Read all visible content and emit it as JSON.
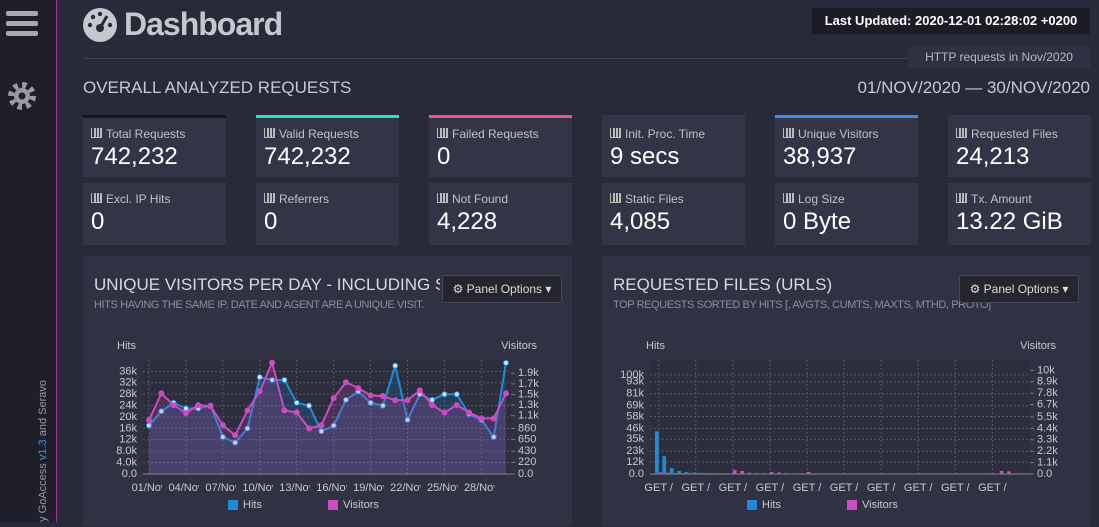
{
  "sidebar": {
    "credit_prefix": "by GoAccess ",
    "version": "v1.3",
    "credit_suffix": " and Seravo"
  },
  "header": {
    "title": "Dashboard",
    "last_updated": "Last Updated: 2020-12-01 02:28:02 +0200",
    "tab": "HTTP requests in Nov/2020"
  },
  "overall": {
    "title": "OVERALL ANALYZED REQUESTS",
    "date_range": "01/NOV/2020 — 30/NOV/2020"
  },
  "metrics": [
    {
      "label": "Total Requests",
      "value": "742,232"
    },
    {
      "label": "Valid Requests",
      "value": "742,232"
    },
    {
      "label": "Failed Requests",
      "value": "0"
    },
    {
      "label": "Init. Proc. Time",
      "value": "9 secs"
    },
    {
      "label": "Unique Visitors",
      "value": "38,937"
    },
    {
      "label": "Requested Files",
      "value": "24,213"
    },
    {
      "label": "Excl. IP Hits",
      "value": "0"
    },
    {
      "label": "Referrers",
      "value": "0"
    },
    {
      "label": "Not Found",
      "value": "4,228"
    },
    {
      "label": "Static Files",
      "value": "4,085"
    },
    {
      "label": "Log Size",
      "value": "0 Byte"
    },
    {
      "label": "Tx. Amount",
      "value": "13.22 GiB"
    }
  ],
  "ui": {
    "panel_options": "Panel Options"
  },
  "chart_data": [
    {
      "type": "line",
      "title": "UNIQUE VISITORS PER DAY - INCLUDING SPIDERS",
      "subtitle": "HITS HAVING THE SAME IP, DATE AND AGENT ARE A UNIQUE VISIT.",
      "y_label": "Hits",
      "y2_label": "Visitors",
      "grid": true,
      "categories": [
        "01/Nov",
        null,
        null,
        "04/Nov",
        null,
        null,
        "07/Nov",
        null,
        null,
        "10/Nov",
        null,
        null,
        "13/Nov",
        null,
        null,
        "16/Nov",
        null,
        null,
        "19/Nov",
        null,
        null,
        "22/Nov",
        null,
        null,
        "25/Nov",
        null,
        null,
        "28/Nov",
        null,
        null
      ],
      "ylim": [
        0,
        40000
      ],
      "yticks": [
        {
          "value": 0,
          "label": "0.0"
        },
        {
          "value": 4000,
          "label": "4.0k"
        },
        {
          "value": 8000,
          "label": "8.0k"
        },
        {
          "value": 12000,
          "label": "12k"
        },
        {
          "value": 16000,
          "label": "16k"
        },
        {
          "value": 20000,
          "label": "20k"
        },
        {
          "value": 24000,
          "label": "24k"
        },
        {
          "value": 28000,
          "label": "28k"
        },
        {
          "value": 32000,
          "label": "32k"
        },
        {
          "value": 36000,
          "label": "36k"
        }
      ],
      "y2lim": [
        0,
        2150
      ],
      "y2ticks": [
        {
          "value": 0,
          "label": "0.0"
        },
        220,
        430,
        650,
        860,
        {
          "value": 1100,
          "label": "1.1k"
        },
        {
          "value": 1300,
          "label": "1.3k"
        },
        {
          "value": 1500,
          "label": "1.5k"
        },
        {
          "value": 1700,
          "label": "1.7k"
        },
        {
          "value": 1900,
          "label": "1.9k"
        }
      ],
      "series": [
        {
          "name": "Hits",
          "color": "#1f8bd6",
          "values": [
            17000,
            22000,
            25000,
            23000,
            23000,
            24000,
            13000,
            11000,
            16000,
            34000,
            33000,
            33000,
            25000,
            24000,
            15000,
            17000,
            26000,
            29000,
            25000,
            24000,
            38000,
            19000,
            28000,
            26000,
            28000,
            28000,
            21000,
            19000,
            13000,
            39000
          ]
        },
        {
          "name": "Visitors",
          "color": "#cc4bc2",
          "axis": "y2",
          "values": [
            1015,
            1520,
            1300,
            1150,
            1300,
            1280,
            920,
            730,
            1200,
            1560,
            2100,
            1200,
            1160,
            860,
            920,
            1430,
            1730,
            1620,
            1480,
            1470,
            1390,
            1390,
            1580,
            1300,
            1160,
            1300,
            1160,
            1050,
            1050,
            1520
          ]
        }
      ]
    },
    {
      "type": "bar",
      "title": "REQUESTED FILES (URLS)",
      "subtitle": "TOP REQUESTS SORTED BY HITS [, AVGTS, CUMTS, MAXTS, MTHD, PROTO]",
      "y_label": "Hits",
      "y2_label": "Visitors",
      "grid": true,
      "categories": [
        "GET /",
        null,
        null,
        null,
        null,
        "GET /",
        null,
        null,
        null,
        null,
        "GET /",
        null,
        null,
        null,
        null,
        "GET /",
        null,
        null,
        null,
        null,
        "GET /",
        null,
        null,
        null,
        null,
        "GET /",
        null,
        null,
        null,
        null,
        "GET /",
        null,
        null,
        null,
        null,
        "GET /",
        null,
        null,
        null,
        null,
        "GET /",
        null,
        null,
        null,
        null,
        "GET /",
        null,
        null,
        null,
        null
      ],
      "ylim": [
        0,
        115000
      ],
      "yticks": [
        {
          "value": 0,
          "label": "0.0"
        },
        {
          "value": 12000,
          "label": "12k"
        },
        {
          "value": 23000,
          "label": "23k"
        },
        {
          "value": 35000,
          "label": "35k"
        },
        {
          "value": 46000,
          "label": "46k"
        },
        {
          "value": 58000,
          "label": "58k"
        },
        {
          "value": 69000,
          "label": "69k"
        },
        {
          "value": 81000,
          "label": "81k"
        },
        {
          "value": 93000,
          "label": "93k"
        },
        {
          "value": 100000,
          "label": "100k"
        }
      ],
      "y2lim": [
        0,
        11000
      ],
      "y2ticks": [
        {
          "value": 0,
          "label": "0.0"
        },
        {
          "value": 1100,
          "label": "1.1k"
        },
        {
          "value": 2200,
          "label": "2.2k"
        },
        {
          "value": 3300,
          "label": "3.3k"
        },
        {
          "value": 4400,
          "label": "4.4k"
        },
        {
          "value": 5500,
          "label": "5.5k"
        },
        {
          "value": 6700,
          "label": "6.7k"
        },
        {
          "value": 7800,
          "label": "7.8k"
        },
        {
          "value": 8900,
          "label": "8.9k"
        },
        {
          "value": 10000,
          "label": "10k"
        }
      ],
      "series": [
        {
          "name": "Hits",
          "color": "#1f8bd6",
          "values": [
            43000,
            18000,
            6000,
            3000,
            2000,
            1500,
            1200,
            1000,
            900,
            800,
            700,
            650,
            600,
            550,
            500,
            480,
            460,
            440,
            420,
            400,
            380,
            360,
            340,
            320,
            300,
            290,
            280,
            270,
            260,
            250,
            240,
            230,
            220,
            210,
            200,
            195,
            190,
            185,
            180,
            175,
            170,
            165,
            160,
            155,
            150,
            145,
            140,
            135,
            130,
            125
          ]
        },
        {
          "name": "Visitors",
          "color": "#cc4bc2",
          "axis": "y2",
          "values": [
            150,
            120,
            100,
            90,
            80,
            80,
            70,
            70,
            70,
            60,
            400,
            300,
            120,
            80,
            70,
            200,
            150,
            80,
            60,
            60,
            200,
            60,
            60,
            60,
            60,
            60,
            60,
            60,
            60,
            60,
            60,
            60,
            60,
            60,
            60,
            60,
            60,
            60,
            60,
            60,
            60,
            60,
            60,
            60,
            60,
            60,
            300,
            250,
            60,
            60
          ]
        }
      ]
    }
  ]
}
